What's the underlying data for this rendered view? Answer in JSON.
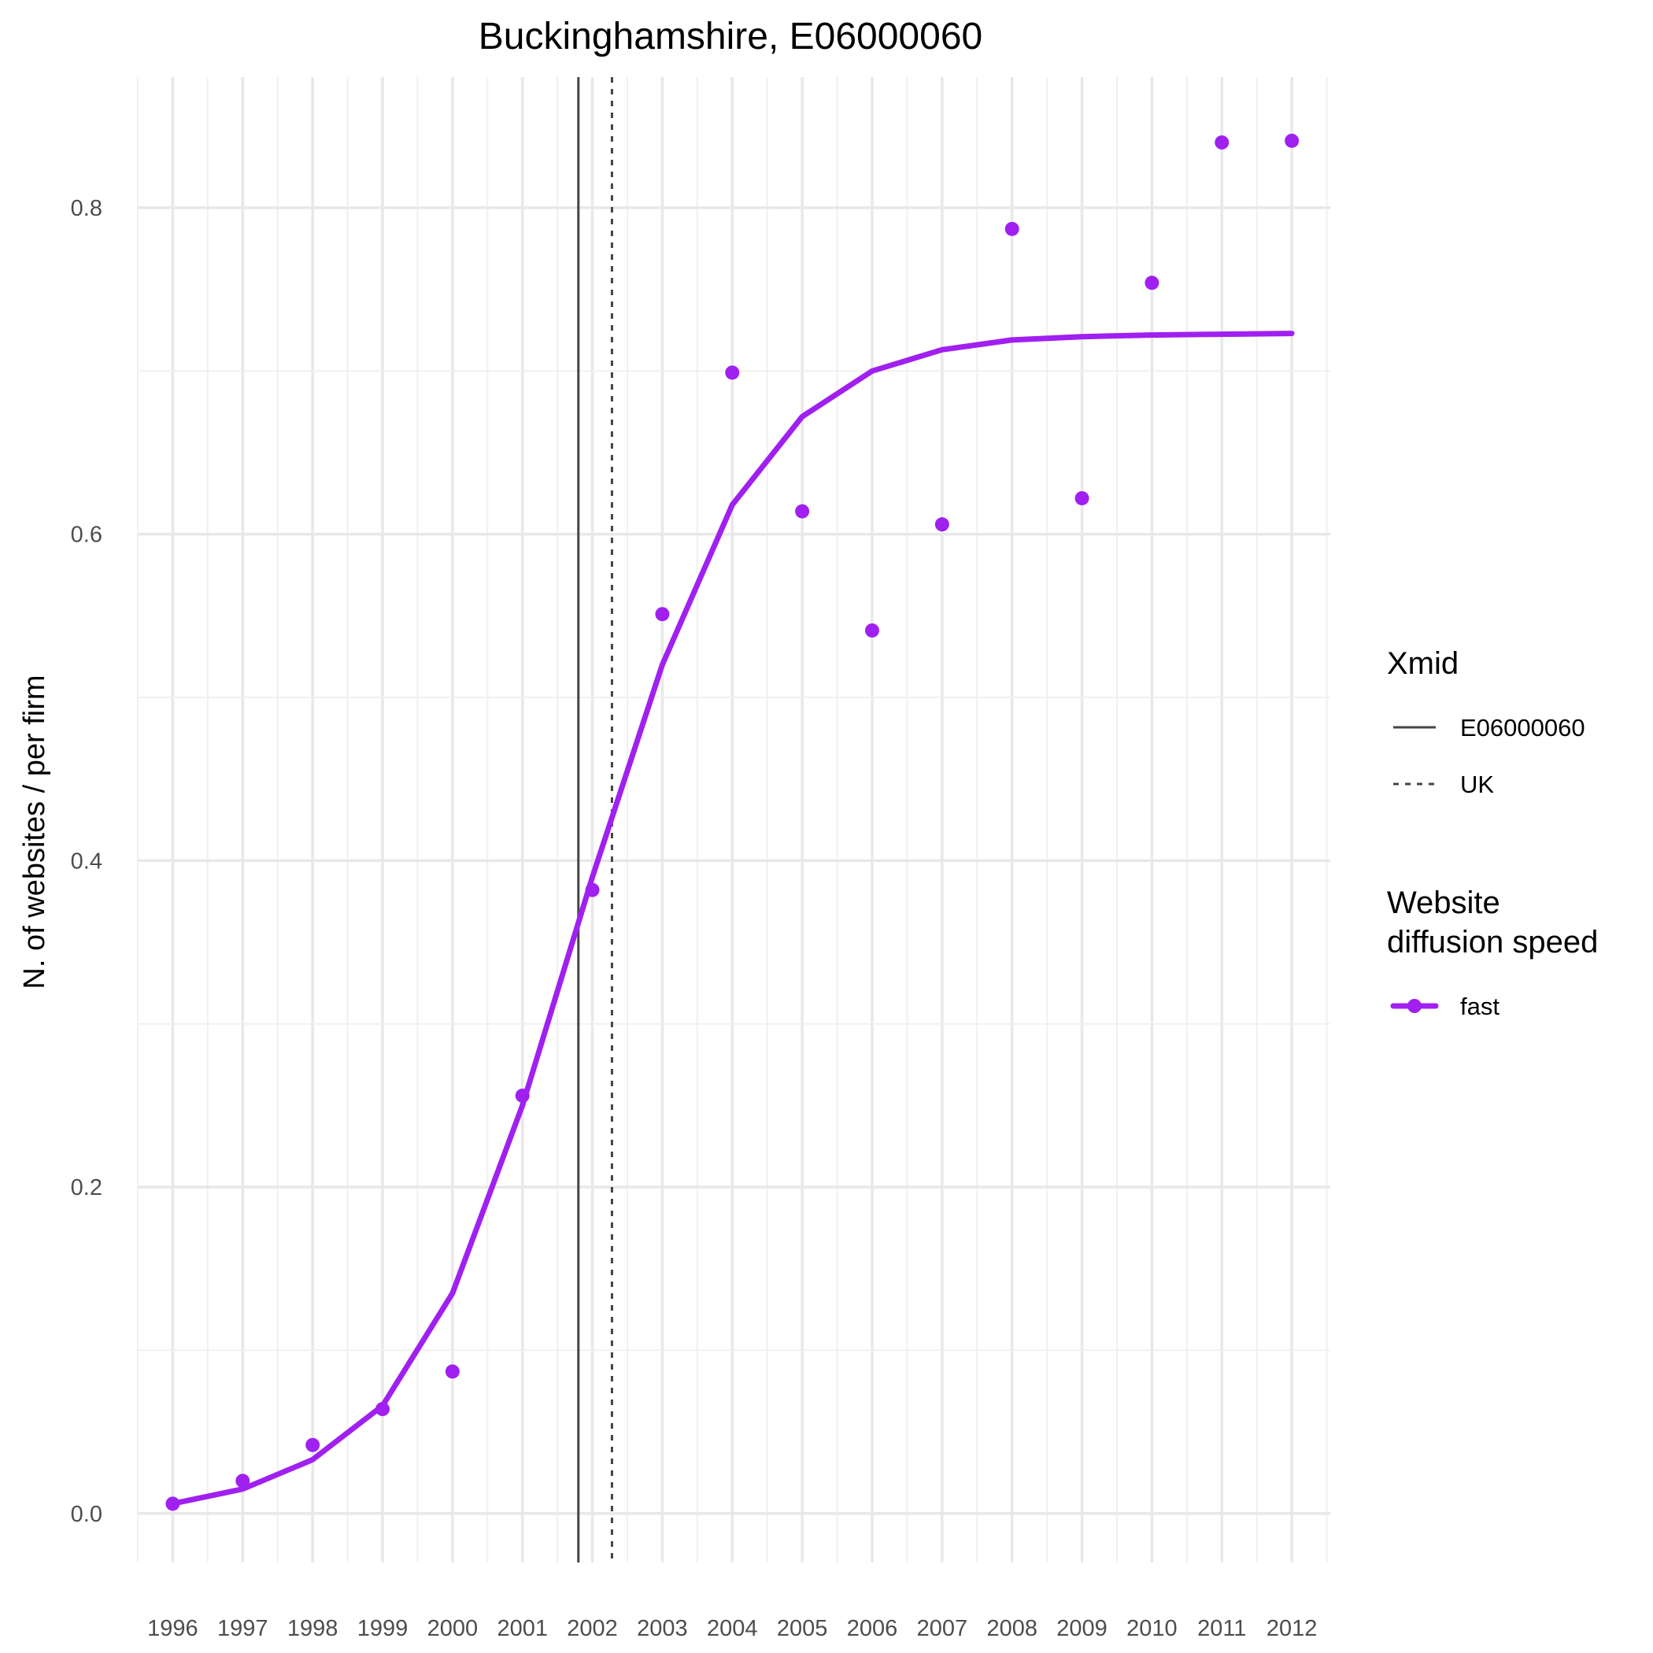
{
  "chart_data": {
    "type": "line",
    "title": "Buckinghamshire, E06000060",
    "xlabel": "",
    "ylabel": "N. of websites / per firm",
    "x": [
      1996,
      1997,
      1998,
      1999,
      2000,
      2001,
      2002,
      2003,
      2004,
      2005,
      2006,
      2007,
      2008,
      2009,
      2010,
      2011,
      2012
    ],
    "x_tick_labels": [
      "1996",
      "1997",
      "1998",
      "1999",
      "2000",
      "2001",
      "2002",
      "2003",
      "2004",
      "2005",
      "2006",
      "2007",
      "2008",
      "2009",
      "2010",
      "2011",
      "2012"
    ],
    "y_tick_labels": [
      "0.0",
      "0.2",
      "0.4",
      "0.6",
      "0.8"
    ],
    "y_ticks": [
      0,
      0.2,
      0.4,
      0.6,
      0.8
    ],
    "xlim": [
      1995.5,
      2012.55
    ],
    "ylim": [
      -0.03,
      0.88
    ],
    "grid": true,
    "series": [
      {
        "name": "fast",
        "color": "#a020f0",
        "fitted": [
          0.006,
          0.015,
          0.033,
          0.066,
          0.135,
          0.25,
          0.39,
          0.52,
          0.618,
          0.672,
          0.7,
          0.713,
          0.719,
          0.721,
          0.722,
          0.7225,
          0.723
        ],
        "observed": [
          0.006,
          0.02,
          0.042,
          0.064,
          0.087,
          0.256,
          0.382,
          0.551,
          0.699,
          0.614,
          0.541,
          0.606,
          0.787,
          0.622,
          0.754,
          0.84,
          0.841
        ]
      }
    ],
    "vlines": [
      {
        "name": "E06000060",
        "x": 2001.8,
        "style": "solid",
        "color": "#444444"
      },
      {
        "name": "UK",
        "x": 2002.28,
        "style": "dotted",
        "color": "#444444"
      }
    ],
    "legend_position": "right",
    "legends": [
      {
        "title": [
          "Xmid"
        ],
        "entries": [
          {
            "label": "E06000060",
            "style": "solid"
          },
          {
            "label": "UK",
            "style": "dotted"
          }
        ]
      },
      {
        "title": [
          "Website",
          "diffusion speed"
        ],
        "entries": [
          {
            "label": "fast",
            "style": "line-point",
            "color": "#a020f0"
          }
        ]
      }
    ]
  }
}
